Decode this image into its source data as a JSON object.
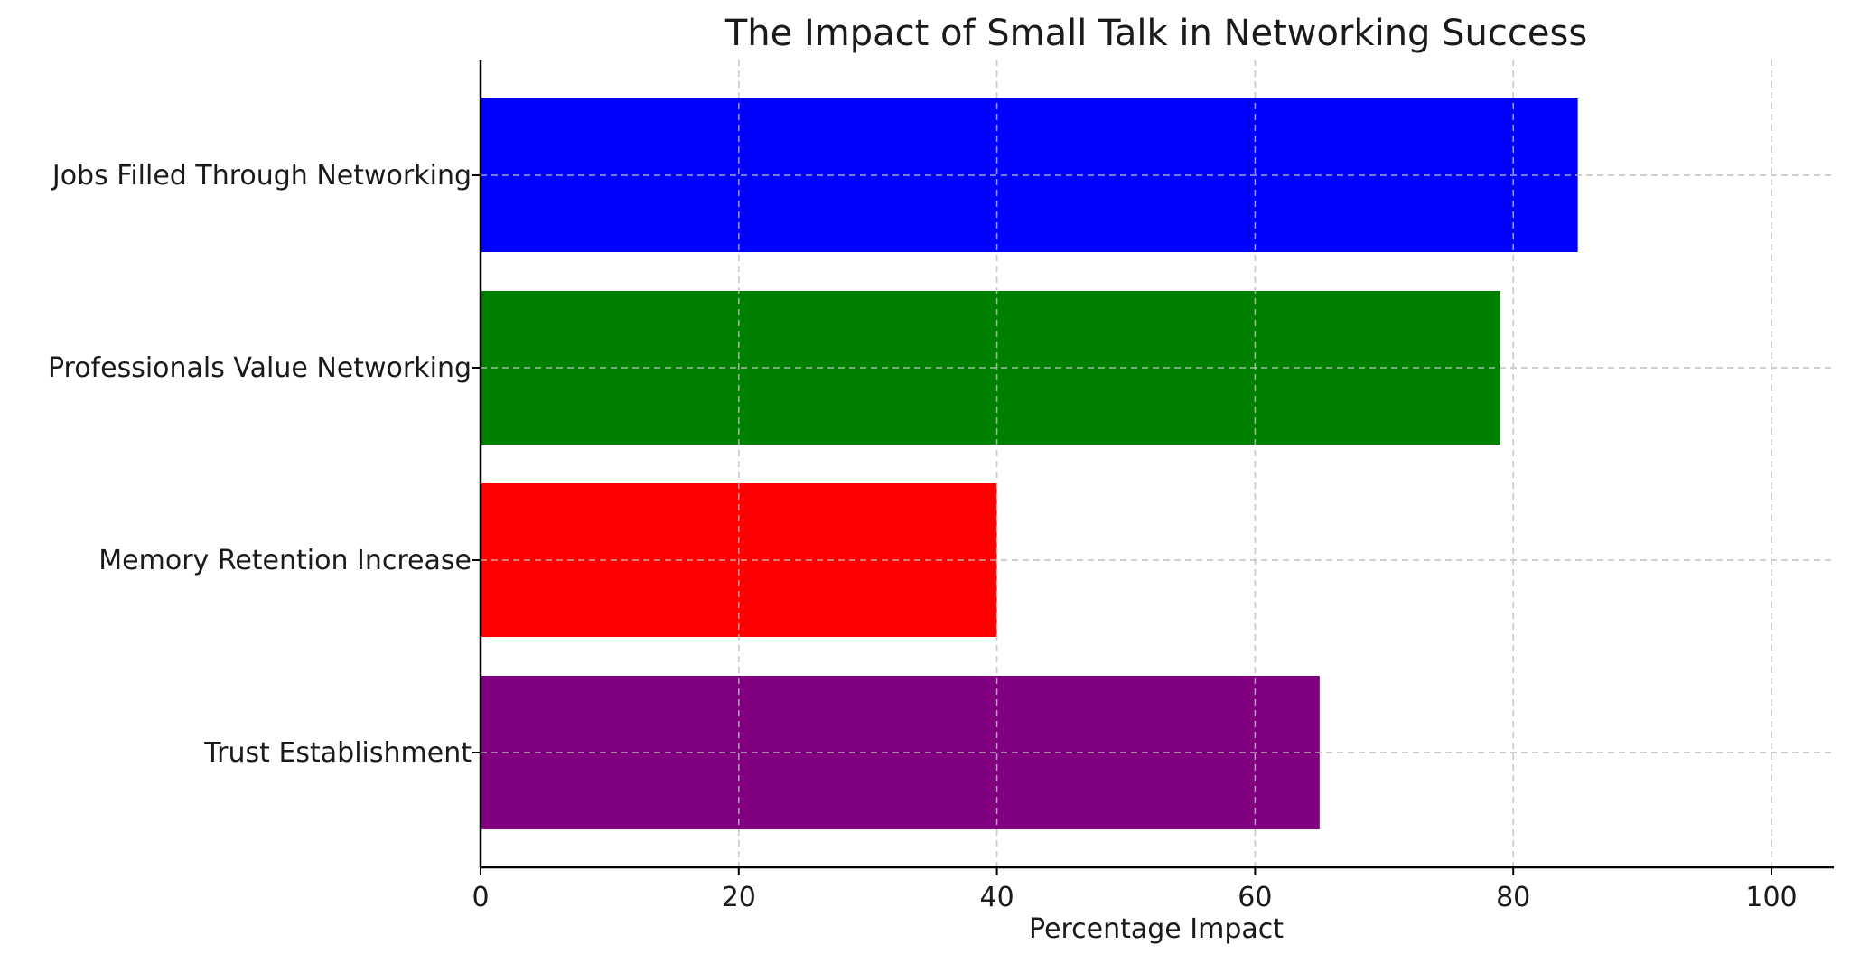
{
  "chart_data": {
    "type": "bar",
    "orientation": "horizontal",
    "title": "The Impact of Small Talk in Networking Success",
    "xlabel": "Percentage Impact",
    "ylabel": "",
    "categories": [
      "Jobs Filled Through Networking",
      "Professionals Value Networking",
      "Memory Retention Increase",
      "Trust Establishment"
    ],
    "values": [
      85,
      79,
      40,
      65
    ],
    "colors": [
      "#0000ff",
      "#008000",
      "#ff0000",
      "#800080"
    ],
    "xlim": [
      0,
      105
    ],
    "xticks": [
      0,
      20,
      40,
      60,
      80,
      100
    ],
    "xtick_labels": [
      "0",
      "20",
      "40",
      "60",
      "80",
      "100"
    ],
    "grid": true,
    "grid_style": "dashed",
    "legend": "none"
  }
}
